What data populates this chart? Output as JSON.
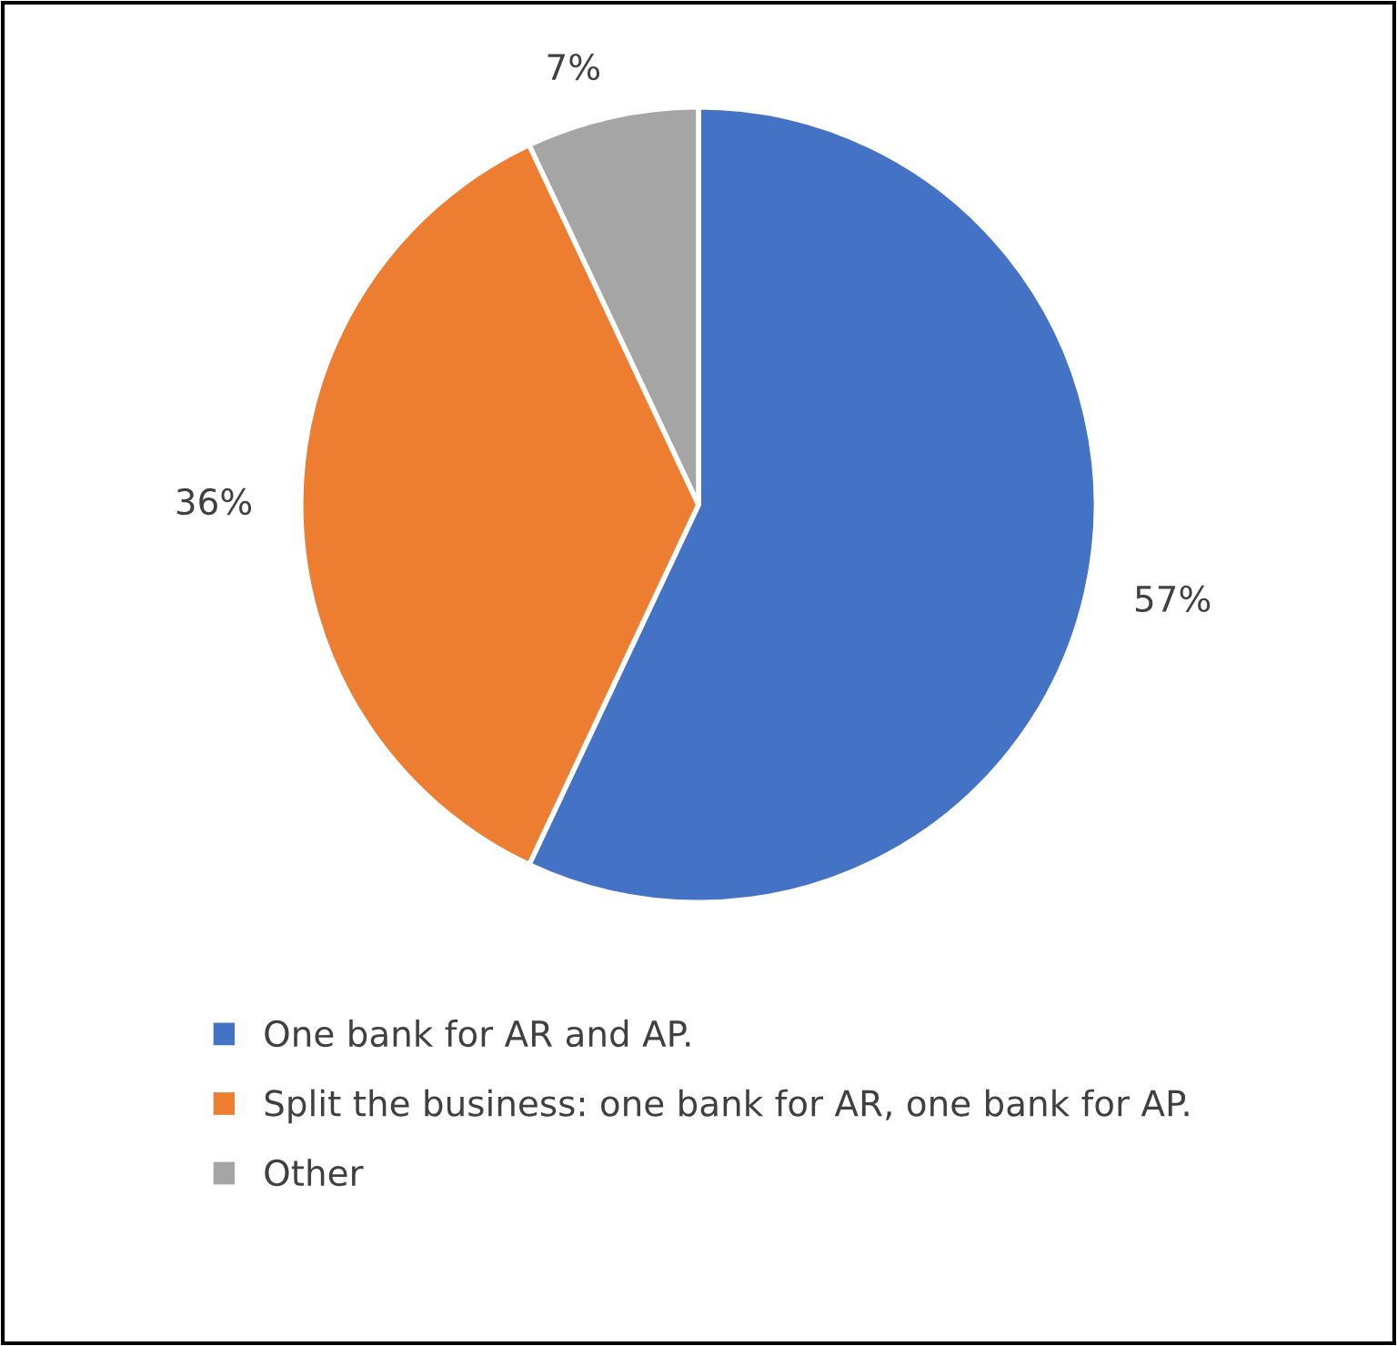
{
  "chart_data": {
    "type": "pie",
    "categories": [
      "One bank for AR and AP.",
      "Split the business: one bank for AR, one bank for AP.",
      "Other"
    ],
    "values": [
      57,
      36,
      7
    ],
    "colors": [
      "#4472c4",
      "#ed7d31",
      "#a5a5a5"
    ],
    "value_labels": [
      "57%",
      "36%",
      "7%"
    ],
    "legend": "bottom"
  }
}
